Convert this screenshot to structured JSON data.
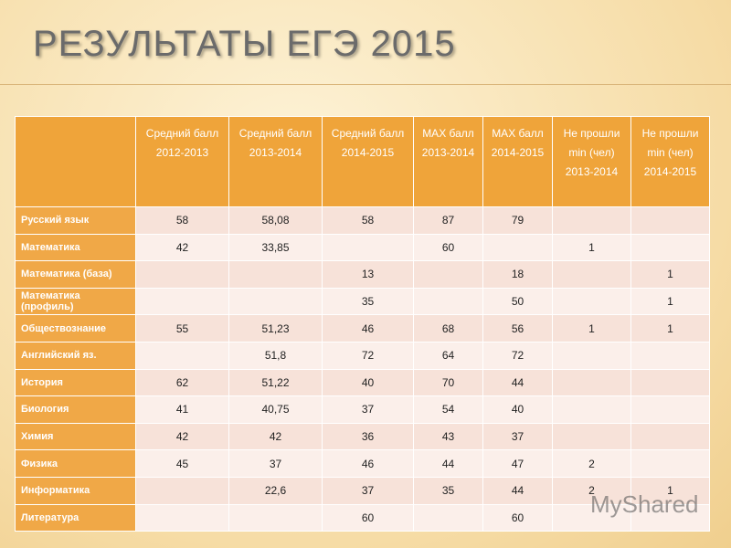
{
  "header": {
    "title": "РЕЗУЛЬТАТЫ ЕГЭ 2015"
  },
  "table": {
    "columns": [
      null,
      "Средний балл 2012-2013",
      "Средний балл 2013-2014",
      "Средний балл 2014-2015",
      "MAX балл 2013-2014",
      "MAX балл 2014-2015",
      "Не прошли min (чел) 2013-2014",
      "Не прошли min (чел) 2014-2015"
    ],
    "rows": [
      [
        "Русский язык",
        "58",
        "58,08",
        "58",
        "87",
        "79",
        null,
        null
      ],
      [
        "Математика",
        "42",
        "33,85",
        null,
        "60",
        null,
        "1",
        null
      ],
      [
        "Математика (база)",
        null,
        null,
        "13",
        null,
        "18",
        null,
        "1"
      ],
      [
        "Математика (профиль)",
        null,
        null,
        "35",
        null,
        "50",
        null,
        "1"
      ],
      [
        "Обществознание",
        "55",
        "51,23",
        "46",
        "68",
        "56",
        "1",
        "1"
      ],
      [
        "Английский яз.",
        null,
        "51,8",
        "72",
        "64",
        "72",
        null,
        null
      ],
      [
        "История",
        "62",
        "51,22",
        "40",
        "70",
        "44",
        null,
        null
      ],
      [
        "Биология",
        "41",
        "40,75",
        "37",
        "54",
        "40",
        null,
        null
      ],
      [
        "Химия",
        "42",
        "42",
        "36",
        "43",
        "37",
        null,
        null
      ],
      [
        "Физика",
        "45",
        "37",
        "46",
        "44",
        "47",
        "2",
        null
      ],
      [
        "Информатика",
        null,
        "22,6",
        "37",
        "35",
        "44",
        "2",
        "1"
      ],
      [
        "Литература",
        null,
        null,
        "60",
        null,
        "60",
        null,
        null
      ]
    ]
  },
  "watermark": "MyShared"
}
